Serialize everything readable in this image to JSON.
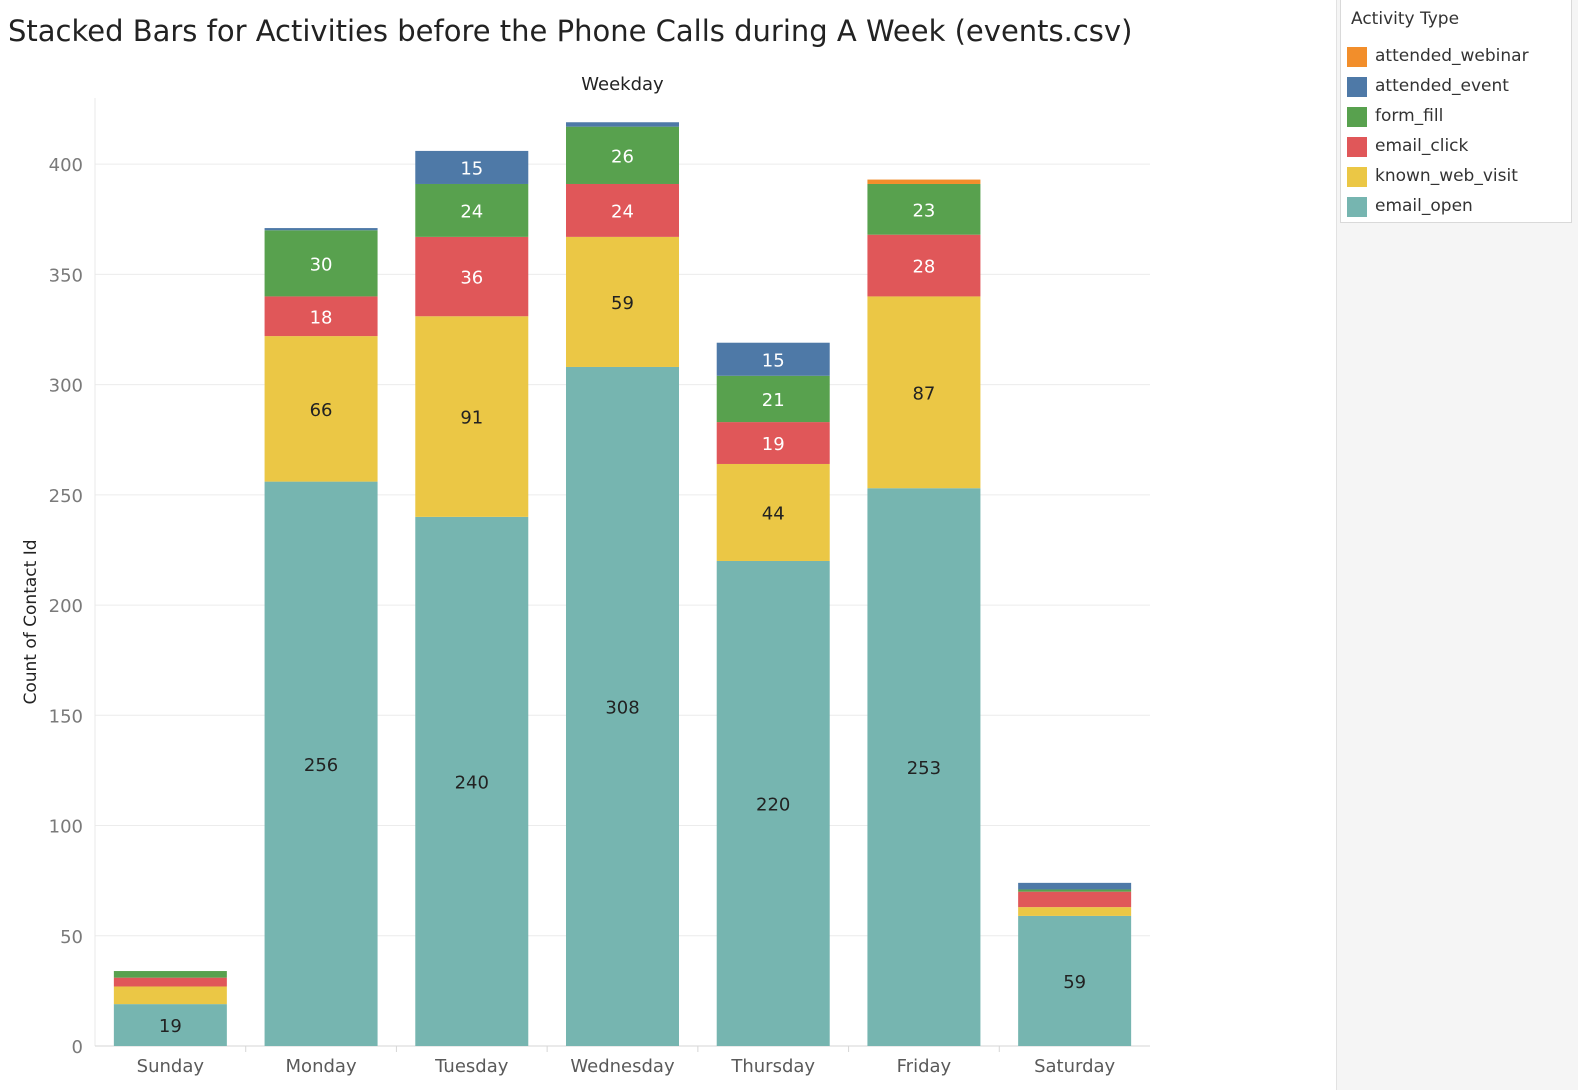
{
  "chart_data": {
    "type": "bar",
    "stacked": true,
    "title": "Stacked Bars for Activities before the Phone Calls during A Week (events.csv)",
    "column_header": "Weekday",
    "xlabel": "Weekday",
    "ylabel": "Count of Contact Id",
    "ylim": [
      0,
      430
    ],
    "yticks": [
      0,
      50,
      100,
      150,
      200,
      250,
      300,
      350,
      400
    ],
    "categories": [
      "Sunday",
      "Monday",
      "Tuesday",
      "Wednesday",
      "Thursday",
      "Friday",
      "Saturday"
    ],
    "legend_title": "Activity Type",
    "legend_order": [
      "attended_webinar",
      "attended_event",
      "form_fill",
      "email_click",
      "known_web_visit",
      "email_open"
    ],
    "series": [
      {
        "name": "email_open",
        "color": "#76b5b0",
        "label_color": "#222222",
        "values": [
          19,
          256,
          240,
          308,
          220,
          253,
          59
        ],
        "labels": [
          "19",
          "256",
          "240",
          "308",
          "220",
          "253",
          "59"
        ]
      },
      {
        "name": "known_web_visit",
        "color": "#ebc745",
        "label_color": "#222222",
        "values": [
          8,
          66,
          91,
          59,
          44,
          87,
          4
        ],
        "labels": [
          "",
          "66",
          "91",
          "59",
          "44",
          "87",
          ""
        ]
      },
      {
        "name": "email_click",
        "color": "#e05759",
        "label_color": "#ffffff",
        "values": [
          4,
          18,
          36,
          24,
          19,
          28,
          7
        ],
        "labels": [
          "",
          "18",
          "36",
          "24",
          "19",
          "28",
          ""
        ]
      },
      {
        "name": "form_fill",
        "color": "#58a14e",
        "label_color": "#ffffff",
        "values": [
          3,
          30,
          24,
          26,
          21,
          23,
          1
        ],
        "labels": [
          "",
          "30",
          "24",
          "26",
          "21",
          "23",
          ""
        ]
      },
      {
        "name": "attended_event",
        "color": "#4e79a7",
        "label_color": "#ffffff",
        "values": [
          0,
          1,
          15,
          2,
          15,
          0,
          3
        ],
        "labels": [
          "",
          "",
          "15",
          "",
          "15",
          "",
          ""
        ]
      },
      {
        "name": "attended_webinar",
        "color": "#f28e2b",
        "label_color": "#ffffff",
        "values": [
          0,
          0,
          0,
          0,
          0,
          2,
          0
        ],
        "labels": [
          "",
          "",
          "",
          "",
          "",
          "",
          ""
        ]
      }
    ],
    "grid": true,
    "legend_position": "top-right"
  }
}
